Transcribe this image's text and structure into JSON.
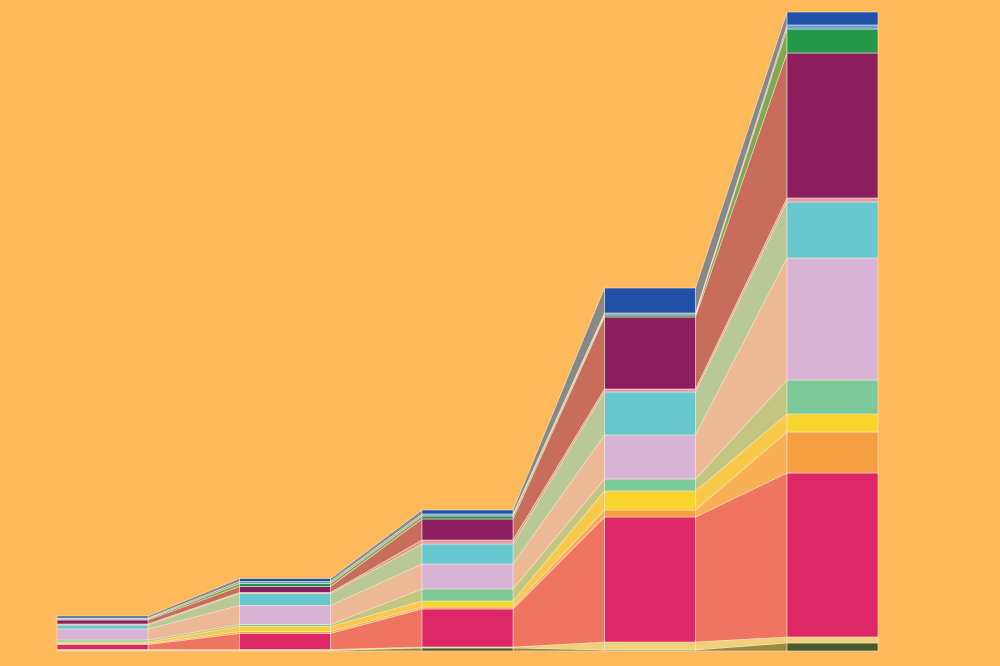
{
  "chart_data": {
    "type": "stacked_flow_bar",
    "categories": [
      null,
      null,
      null,
      null,
      null
    ],
    "background": "#fdb95a",
    "ylim": [
      0,
      640
    ],
    "series": [
      {
        "color": "#4a5a2a",
        "band_color": "#9a8a40",
        "values": [
          0.5,
          0.5,
          3,
          1,
          8
        ]
      },
      {
        "color": "#f2d27a",
        "band_color": "#f3cf7a",
        "values": [
          1,
          1,
          1,
          8,
          6
        ]
      },
      {
        "color": "#de2767",
        "band_color": "#ef7560",
        "values": [
          5,
          16,
          38,
          125,
          164
        ]
      },
      {
        "color": "#f59f42",
        "band_color": "#f9b055",
        "values": [
          1,
          2,
          2,
          7,
          41
        ]
      },
      {
        "color": "#f8d42c",
        "band_color": "#f9c94a",
        "values": [
          1.5,
          5,
          6,
          19,
          18
        ]
      },
      {
        "color": "#7dc99a",
        "band_color": "#c2c680",
        "values": [
          2,
          2,
          12,
          12,
          34
        ]
      },
      {
        "color": "#d9b3d5",
        "band_color": "#ecb896",
        "values": [
          11,
          19,
          25,
          44,
          122
        ]
      },
      {
        "color": "#68c8d0",
        "band_color": "#b9c897",
        "values": [
          4,
          12,
          20,
          43,
          56
        ]
      },
      {
        "color": "#e79aa6",
        "band_color": "#e09a80",
        "values": [
          1,
          1,
          4,
          3,
          4
        ]
      },
      {
        "color": "#8c1d5f",
        "band_color": "#c86d5c",
        "values": [
          4,
          6,
          21,
          72,
          145
        ]
      },
      {
        "color": "#229848",
        "band_color": "#80a850",
        "values": [
          1,
          3,
          3,
          2,
          24
        ]
      },
      {
        "color": "#6aa0d8",
        "band_color": "#a0a0a0",
        "values": [
          1,
          2,
          2,
          2,
          4
        ]
      },
      {
        "color": "#2050a8",
        "band_color": "#888888",
        "values": [
          2,
          3,
          4,
          25,
          13
        ]
      }
    ]
  }
}
